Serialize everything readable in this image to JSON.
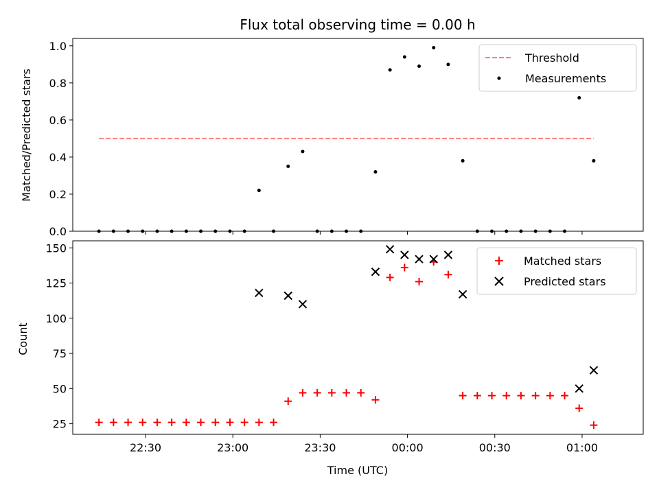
{
  "chart_data": {
    "type": "scatter",
    "title": "Flux total observing time = 0.00 h",
    "xlabel": "Time (UTC)",
    "xlim": [
      "22:05",
      "01:21"
    ],
    "xticks": [
      "22:30",
      "23:00",
      "23:30",
      "00:00",
      "00:30",
      "01:00"
    ],
    "panels": [
      {
        "id": "ratio",
        "ylabel": "Matched/Predicted stars",
        "ylim": [
          0,
          1.04
        ],
        "yticks": [
          "0.0",
          "0.2",
          "0.4",
          "0.6",
          "0.8",
          "1.0"
        ],
        "legend_position": "top-right",
        "series": [
          {
            "name": "Threshold",
            "kind": "line",
            "style": "dashed",
            "color": "#ff7f7f",
            "points": [
              [
                "22:14",
                0.5
              ],
              [
                "01:04",
                0.5
              ]
            ]
          },
          {
            "name": "Measurements",
            "kind": "scatter",
            "marker": "dot",
            "color": "#000000",
            "points": [
              [
                "22:14",
                0.0
              ],
              [
                "22:19",
                0.0
              ],
              [
                "22:24",
                0.0
              ],
              [
                "22:29",
                0.0
              ],
              [
                "22:34",
                0.0
              ],
              [
                "22:39",
                0.0
              ],
              [
                "22:44",
                0.0
              ],
              [
                "22:49",
                0.0
              ],
              [
                "22:54",
                0.0
              ],
              [
                "22:59",
                0.0
              ],
              [
                "23:04",
                0.0
              ],
              [
                "23:09",
                0.22
              ],
              [
                "23:14",
                0.0
              ],
              [
                "23:19",
                0.35
              ],
              [
                "23:24",
                0.43
              ],
              [
                "23:29",
                0.0
              ],
              [
                "23:34",
                0.0
              ],
              [
                "23:39",
                0.0
              ],
              [
                "23:44",
                0.0
              ],
              [
                "23:49",
                0.32
              ],
              [
                "23:54",
                0.87
              ],
              [
                "23:59",
                0.94
              ],
              [
                "00:04",
                0.89
              ],
              [
                "00:09",
                0.99
              ],
              [
                "00:14",
                0.9
              ],
              [
                "00:19",
                0.38
              ],
              [
                "00:24",
                0.0
              ],
              [
                "00:29",
                0.0
              ],
              [
                "00:34",
                0.0
              ],
              [
                "00:39",
                0.0
              ],
              [
                "00:44",
                0.0
              ],
              [
                "00:49",
                0.0
              ],
              [
                "00:54",
                0.0
              ],
              [
                "00:59",
                0.72
              ],
              [
                "01:04",
                0.38
              ]
            ]
          }
        ]
      },
      {
        "id": "count",
        "ylabel": "Count",
        "ylim": [
          17.5,
          155
        ],
        "yticks": [
          "25",
          "50",
          "75",
          "100",
          "125",
          "150"
        ],
        "legend_position": "top-right",
        "series": [
          {
            "name": "Matched stars",
            "kind": "scatter",
            "marker": "plus",
            "color": "#ff0000",
            "points": [
              [
                "22:14",
                26
              ],
              [
                "22:19",
                26
              ],
              [
                "22:24",
                26
              ],
              [
                "22:29",
                26
              ],
              [
                "22:34",
                26
              ],
              [
                "22:39",
                26
              ],
              [
                "22:44",
                26
              ],
              [
                "22:49",
                26
              ],
              [
                "22:54",
                26
              ],
              [
                "22:59",
                26
              ],
              [
                "23:04",
                26
              ],
              [
                "23:09",
                26
              ],
              [
                "23:14",
                26
              ],
              [
                "23:19",
                41
              ],
              [
                "23:24",
                47
              ],
              [
                "23:29",
                47
              ],
              [
                "23:34",
                47
              ],
              [
                "23:39",
                47
              ],
              [
                "23:44",
                47
              ],
              [
                "23:49",
                42
              ],
              [
                "23:54",
                129
              ],
              [
                "23:59",
                136
              ],
              [
                "00:04",
                126
              ],
              [
                "00:09",
                140
              ],
              [
                "00:14",
                131
              ],
              [
                "00:19",
                45
              ],
              [
                "00:24",
                45
              ],
              [
                "00:29",
                45
              ],
              [
                "00:34",
                45
              ],
              [
                "00:39",
                45
              ],
              [
                "00:44",
                45
              ],
              [
                "00:49",
                45
              ],
              [
                "00:54",
                45
              ],
              [
                "00:59",
                36
              ],
              [
                "01:04",
                24
              ]
            ]
          },
          {
            "name": "Predicted stars",
            "kind": "scatter",
            "marker": "x",
            "color": "#000000",
            "points": [
              [
                "23:09",
                118
              ],
              [
                "23:19",
                116
              ],
              [
                "23:24",
                110
              ],
              [
                "23:49",
                133
              ],
              [
                "23:54",
                149
              ],
              [
                "23:59",
                145
              ],
              [
                "00:04",
                142
              ],
              [
                "00:09",
                142
              ],
              [
                "00:14",
                145
              ],
              [
                "00:19",
                117
              ],
              [
                "00:59",
                50
              ],
              [
                "01:04",
                63
              ]
            ]
          }
        ]
      }
    ]
  }
}
